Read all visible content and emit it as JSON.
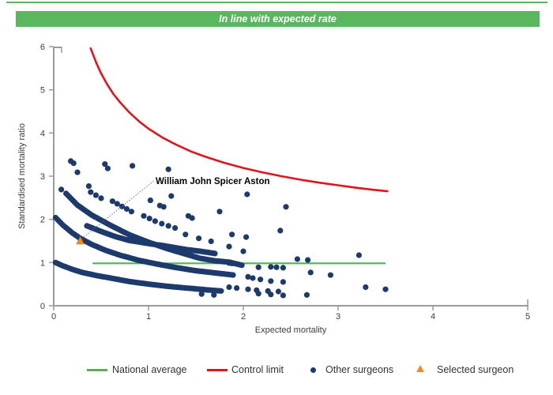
{
  "header": {
    "title": "In line with expected rate",
    "bg": "#5bb75e",
    "text_color": "#ffffff"
  },
  "chart_data": {
    "type": "scatter",
    "title": "",
    "xlabel": "Expected mortality",
    "ylabel": "Standardised mortality ratio",
    "xlim": [
      0,
      5
    ],
    "ylim": [
      0,
      6
    ],
    "xticks": [
      0,
      1,
      2,
      3,
      4,
      5
    ],
    "yticks": [
      0,
      1,
      2,
      3,
      4,
      5,
      6
    ],
    "grid": false,
    "legend_position": "bottom",
    "national_average": {
      "label": "National average",
      "value": 1.0,
      "x_range": [
        0.41,
        3.5
      ],
      "color": "#4fb54f"
    },
    "control_limit": {
      "label": "Control limit",
      "color": "#e0151b",
      "points": [
        [
          0.39,
          5.96
        ],
        [
          0.45,
          5.62
        ],
        [
          0.5,
          5.38
        ],
        [
          0.56,
          5.14
        ],
        [
          0.63,
          4.9
        ],
        [
          0.7,
          4.71
        ],
        [
          0.8,
          4.47
        ],
        [
          0.9,
          4.27
        ],
        [
          1.0,
          4.1
        ],
        [
          1.15,
          3.89
        ],
        [
          1.3,
          3.72
        ],
        [
          1.45,
          3.57
        ],
        [
          1.6,
          3.45
        ],
        [
          1.8,
          3.31
        ],
        [
          2.0,
          3.19
        ],
        [
          2.2,
          3.09
        ],
        [
          2.4,
          3.0
        ],
        [
          2.6,
          2.92
        ],
        [
          2.8,
          2.85
        ],
        [
          3.0,
          2.79
        ],
        [
          3.2,
          2.73
        ],
        [
          3.35,
          2.69
        ],
        [
          3.52,
          2.65
        ]
      ]
    },
    "selected_surgeon": {
      "label": "Selected surgeon",
      "name": "William John Spicer Aston",
      "point": [
        0.28,
        1.5
      ],
      "color": "#f08c1e",
      "annotation_text_pos": [
        1.075,
        2.98
      ],
      "connector_start": [
        0.317,
        1.59
      ],
      "connector_end": [
        1.055,
        2.89
      ]
    },
    "other_surgeons": {
      "label": "Other surgeons",
      "color": "#1d3a6d",
      "dot_radius": 3.6,
      "bands": [
        {
          "name": "band-1",
          "step": 0.018,
          "anchors": [
            [
              0.02,
              2.04
            ],
            [
              0.1,
              1.86
            ],
            [
              0.2,
              1.68
            ],
            [
              0.28,
              1.56
            ],
            [
              0.4,
              1.42
            ],
            [
              0.55,
              1.28
            ],
            [
              0.7,
              1.17
            ],
            [
              0.9,
              1.05
            ],
            [
              1.1,
              0.96
            ],
            [
              1.3,
              0.88
            ],
            [
              1.5,
              0.81
            ],
            [
              1.7,
              0.76
            ],
            [
              1.9,
              0.71
            ]
          ]
        },
        {
          "name": "band-2",
          "step": 0.018,
          "anchors": [
            [
              0.02,
              1.0
            ],
            [
              0.1,
              0.92
            ],
            [
              0.2,
              0.84
            ],
            [
              0.3,
              0.77
            ],
            [
              0.45,
              0.7
            ],
            [
              0.6,
              0.64
            ],
            [
              0.8,
              0.56
            ],
            [
              1.0,
              0.5
            ],
            [
              1.2,
              0.45
            ],
            [
              1.4,
              0.41
            ],
            [
              1.6,
              0.37
            ],
            [
              1.78,
              0.34
            ]
          ]
        },
        {
          "name": "band-3",
          "step": 0.018,
          "anchors": [
            [
              0.13,
              2.6
            ],
            [
              0.25,
              2.33
            ],
            [
              0.4,
              2.1
            ],
            [
              0.6,
              1.86
            ],
            [
              0.8,
              1.64
            ],
            [
              1.0,
              1.47
            ],
            [
              1.2,
              1.32
            ],
            [
              1.4,
              1.19
            ],
            [
              1.54,
              1.1
            ],
            [
              1.7,
              1.04
            ],
            [
              1.85,
              1.01
            ],
            [
              2.0,
              0.93
            ]
          ]
        },
        {
          "name": "band-4",
          "step": 0.018,
          "anchors": [
            [
              0.35,
              1.85
            ],
            [
              0.5,
              1.72
            ],
            [
              0.65,
              1.6
            ],
            [
              0.8,
              1.51
            ],
            [
              1.0,
              1.44
            ],
            [
              1.16,
              1.39
            ],
            [
              1.4,
              1.3
            ],
            [
              1.55,
              1.26
            ],
            [
              1.7,
              1.21
            ]
          ]
        }
      ],
      "points": [
        [
          0.08,
          2.69
        ],
        [
          0.18,
          3.35
        ],
        [
          0.21,
          3.3
        ],
        [
          0.25,
          3.09
        ],
        [
          0.37,
          2.77
        ],
        [
          0.54,
          3.28
        ],
        [
          0.57,
          3.18
        ],
        [
          0.83,
          3.24
        ],
        [
          1.21,
          3.16
        ],
        [
          0.39,
          2.63
        ],
        [
          0.445,
          2.56
        ],
        [
          0.5,
          2.49
        ],
        [
          0.62,
          2.42
        ],
        [
          0.67,
          2.36
        ],
        [
          0.72,
          2.3
        ],
        [
          0.77,
          2.24
        ],
        [
          0.82,
          2.18
        ],
        [
          0.95,
          2.08
        ],
        [
          1.01,
          2.02
        ],
        [
          1.07,
          1.96
        ],
        [
          1.14,
          1.9
        ],
        [
          1.21,
          1.85
        ],
        [
          1.28,
          1.8
        ],
        [
          1.02,
          2.44
        ],
        [
          1.24,
          2.54
        ],
        [
          1.12,
          2.32
        ],
        [
          1.16,
          2.29
        ],
        [
          1.42,
          2.08
        ],
        [
          1.46,
          2.03
        ],
        [
          1.75,
          2.18
        ],
        [
          2.04,
          2.58
        ],
        [
          2.45,
          2.29
        ],
        [
          2.39,
          1.74
        ],
        [
          1.88,
          1.65
        ],
        [
          2.03,
          1.59
        ],
        [
          1.85,
          1.37
        ],
        [
          2.0,
          1.26
        ],
        [
          1.39,
          1.65
        ],
        [
          1.53,
          1.56
        ],
        [
          1.66,
          1.49
        ],
        [
          1.85,
          0.99
        ],
        [
          1.88,
          0.98
        ],
        [
          2.57,
          1.08
        ],
        [
          2.68,
          1.06
        ],
        [
          3.22,
          1.17
        ],
        [
          2.16,
          0.89
        ],
        [
          2.29,
          0.9
        ],
        [
          2.35,
          0.89
        ],
        [
          2.42,
          0.88
        ],
        [
          2.05,
          0.67
        ],
        [
          2.1,
          0.64
        ],
        [
          2.18,
          0.61
        ],
        [
          2.29,
          0.57
        ],
        [
          2.42,
          0.55
        ],
        [
          2.71,
          0.77
        ],
        [
          2.92,
          0.71
        ],
        [
          1.85,
          0.43
        ],
        [
          1.93,
          0.41
        ],
        [
          2.05,
          0.38
        ],
        [
          2.14,
          0.36
        ],
        [
          2.26,
          0.34
        ],
        [
          2.37,
          0.33
        ],
        [
          1.56,
          0.27
        ],
        [
          1.69,
          0.25
        ],
        [
          2.16,
          0.28
        ],
        [
          2.29,
          0.26
        ],
        [
          2.42,
          0.24
        ],
        [
          2.67,
          0.25
        ],
        [
          3.29,
          0.43
        ],
        [
          3.5,
          0.38
        ]
      ]
    }
  },
  "legend": {
    "items": [
      {
        "label": "National average",
        "swatch": "line",
        "color": "#4fb54f"
      },
      {
        "label": "Control limit",
        "swatch": "line",
        "color": "#e0151b"
      },
      {
        "label": "Other surgeons",
        "swatch": "dot",
        "color": "#1d3a6d"
      },
      {
        "label": "Selected surgeon",
        "swatch": "triangle",
        "color": "#f08c1e"
      }
    ]
  }
}
